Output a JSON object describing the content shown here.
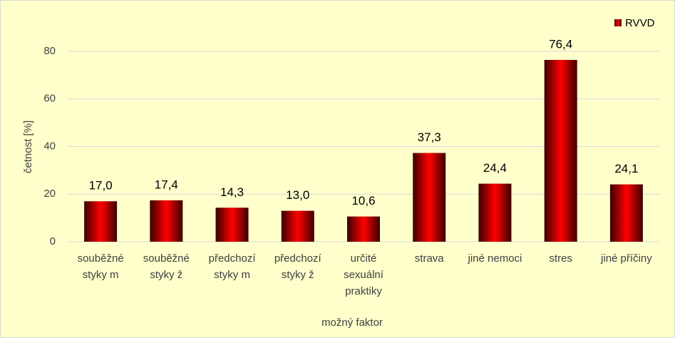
{
  "chart_data": {
    "type": "bar",
    "x_label": "možný faktor",
    "y_label": "četnost [%]",
    "categories": [
      [
        "souběžné",
        "styky m"
      ],
      [
        "souběžné",
        "styky ž"
      ],
      [
        "předchozí",
        "styky m"
      ],
      [
        "předchozí",
        "styky ž"
      ],
      [
        "určité",
        "sexuální",
        "praktiky"
      ],
      [
        "strava"
      ],
      [
        "jiné nemoci"
      ],
      [
        "stres"
      ],
      [
        "jiné příčiny"
      ]
    ],
    "series": [
      {
        "name": "RVVD",
        "color": "#ff0000",
        "values": [
          17.0,
          17.4,
          14.3,
          13.0,
          10.6,
          37.3,
          24.4,
          76.4,
          24.1
        ],
        "value_labels": [
          "17,0",
          "17,4",
          "14,3",
          "13,0",
          "10,6",
          "37,3",
          "24,4",
          "76,4",
          "24,1"
        ]
      }
    ],
    "ylim": [
      0,
      80
    ],
    "yticks": [
      0,
      20,
      40,
      60,
      80
    ],
    "grid": true,
    "legend": "top-right"
  }
}
